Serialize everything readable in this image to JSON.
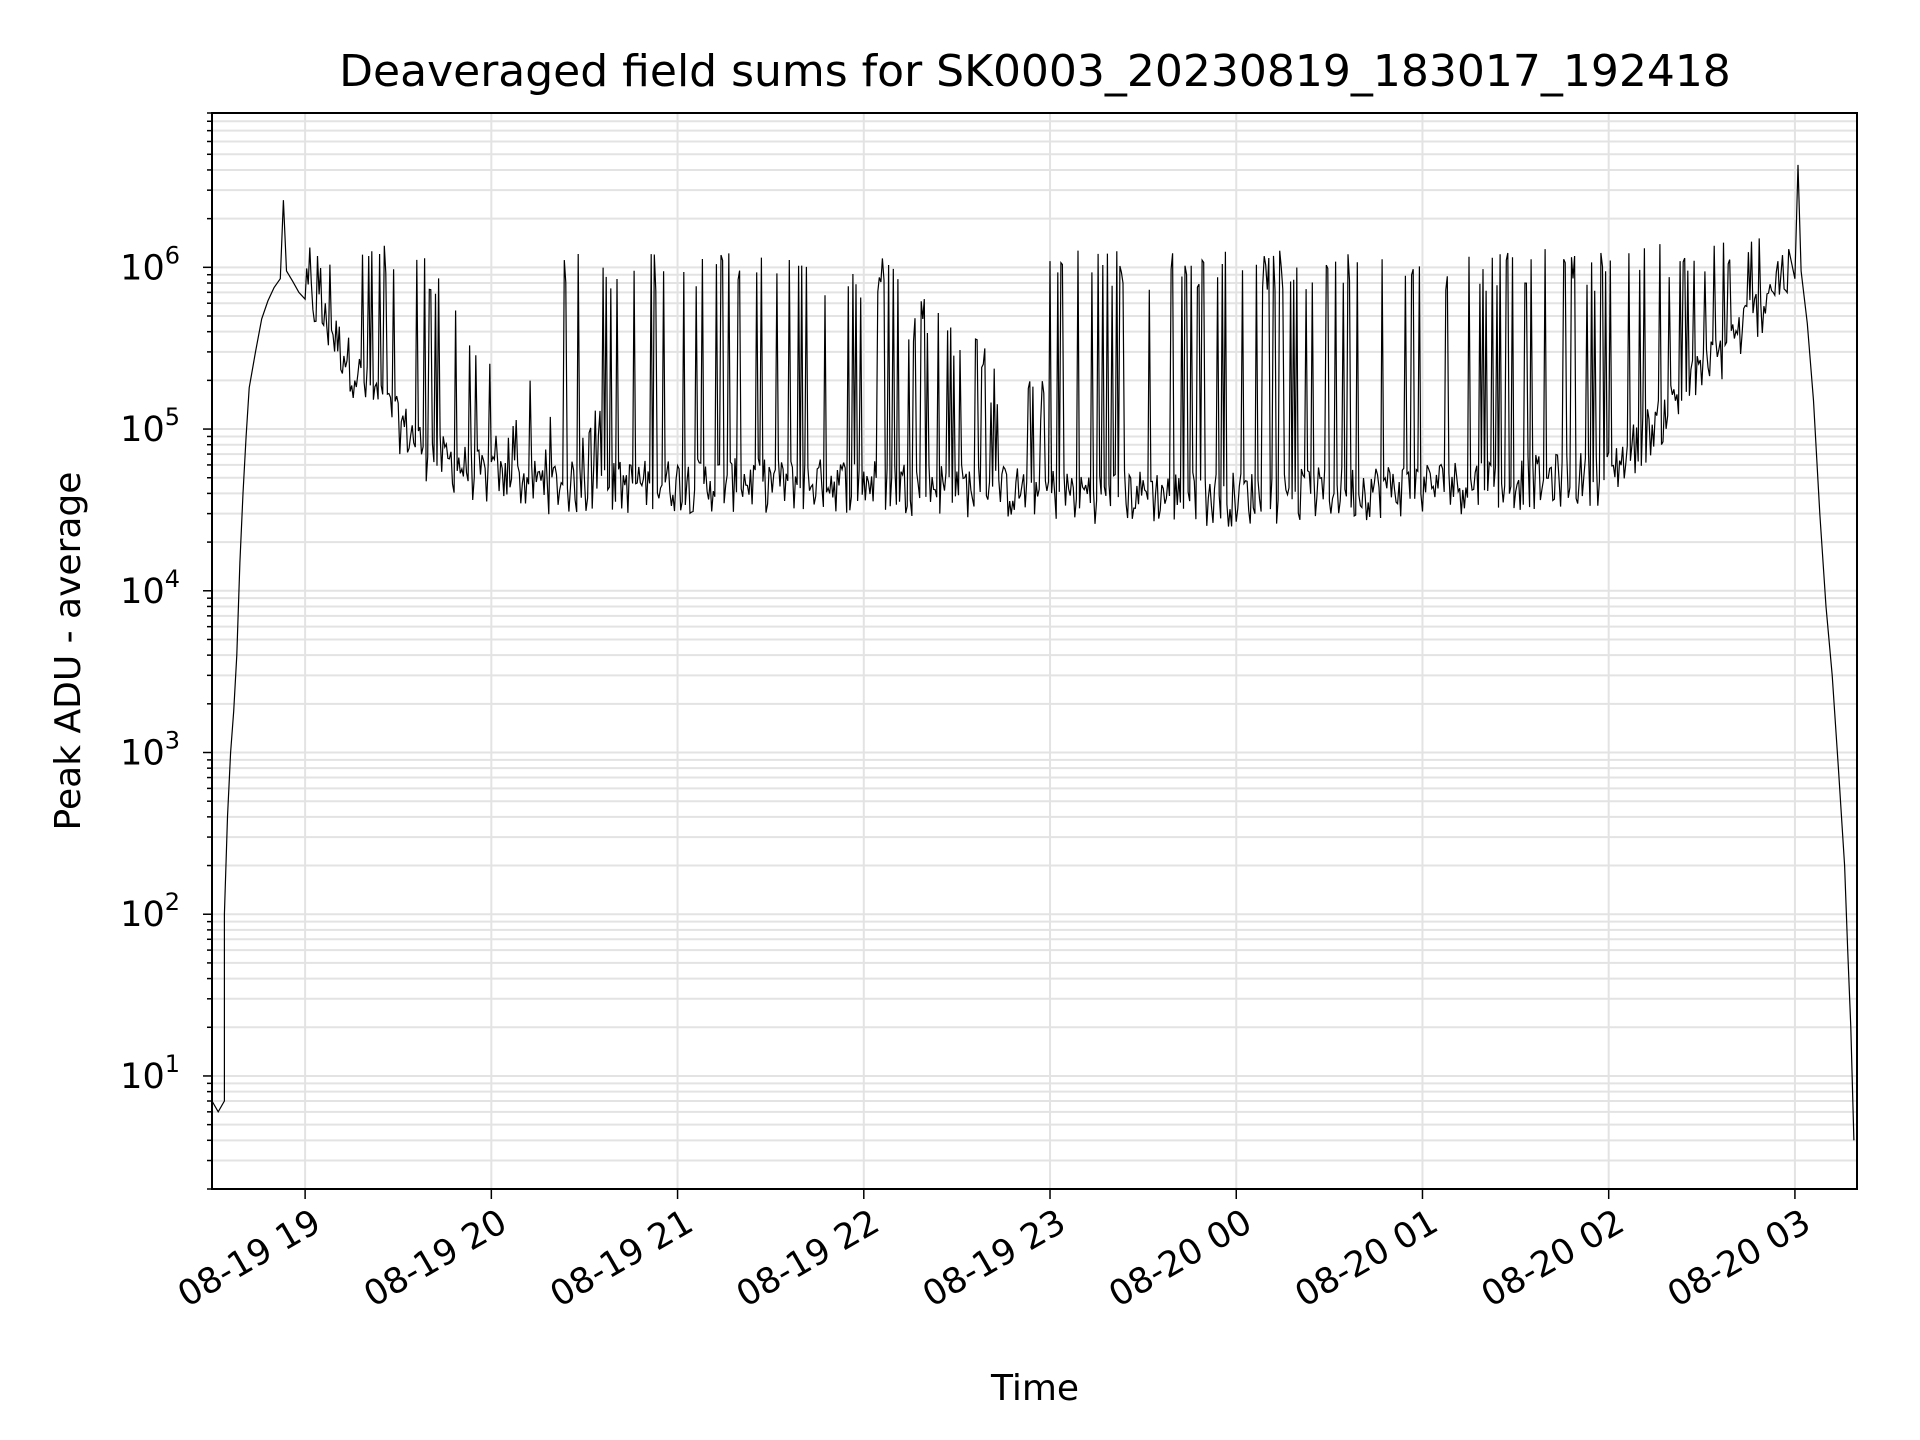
{
  "chart_data": {
    "type": "line",
    "title": "Deaveraged field sums for SK0003_20230819_183017_192418",
    "xlabel": "Time",
    "ylabel": "Peak ADU - average",
    "yscale": "log",
    "xlim": [
      "2023-08-19 18:30",
      "2023-08-20 03:20"
    ],
    "ylim": [
      2,
      9000000
    ],
    "grid": true,
    "line_color": "#000000",
    "grid_color": "#e3e3e3",
    "x_ticks": [
      {
        "time": "2023-08-19 19:00",
        "label": "08-19 19"
      },
      {
        "time": "2023-08-19 20:00",
        "label": "08-19 20"
      },
      {
        "time": "2023-08-19 21:00",
        "label": "08-19 21"
      },
      {
        "time": "2023-08-19 22:00",
        "label": "08-19 22"
      },
      {
        "time": "2023-08-19 23:00",
        "label": "08-19 23"
      },
      {
        "time": "2023-08-20 00:00",
        "label": "08-20 00"
      },
      {
        "time": "2023-08-20 01:00",
        "label": "08-20 01"
      },
      {
        "time": "2023-08-20 02:00",
        "label": "08-20 02"
      },
      {
        "time": "2023-08-20 03:00",
        "label": "08-20 03"
      }
    ],
    "y_ticks": [
      {
        "value": 10,
        "base": "10",
        "exp": "1"
      },
      {
        "value": 100,
        "base": "10",
        "exp": "2"
      },
      {
        "value": 1000,
        "base": "10",
        "exp": "3"
      },
      {
        "value": 10000,
        "base": "10",
        "exp": "4"
      },
      {
        "value": 100000,
        "base": "10",
        "exp": "5"
      },
      {
        "value": 1000000,
        "base": "10",
        "exp": "6"
      }
    ],
    "series": [
      {
        "points": [
          [
            "2023-08-19 18:30",
            7
          ],
          [
            "2023-08-19 18:32",
            6
          ],
          [
            "2023-08-19 18:34",
            7
          ],
          [
            "2023-08-19 18:34",
            100
          ],
          [
            "2023-08-19 18:35",
            400
          ],
          [
            "2023-08-19 18:36",
            1000
          ],
          [
            "2023-08-19 18:37",
            1800
          ],
          [
            "2023-08-19 18:38",
            4000
          ],
          [
            "2023-08-19 18:39",
            15000
          ],
          [
            "2023-08-19 18:40",
            40000
          ],
          [
            "2023-08-19 18:41",
            90000
          ],
          [
            "2023-08-19 18:42",
            180000
          ],
          [
            "2023-08-19 18:44",
            300000
          ],
          [
            "2023-08-19 18:46",
            480000
          ],
          [
            "2023-08-19 18:48",
            620000
          ],
          [
            "2023-08-19 18:50",
            750000
          ],
          [
            "2023-08-19 18:52",
            850000
          ],
          [
            "2023-08-19 18:53",
            2600000
          ],
          [
            "2023-08-19 18:54",
            950000
          ],
          [
            "2023-08-19 18:56",
            820000
          ],
          [
            "2023-08-19 18:58",
            700000
          ],
          [
            "2023-08-19 19:00",
            620000
          ],
          [
            "2023-08-19 19:20",
            150000
          ],
          [
            "2023-08-19 19:40",
            60000
          ],
          [
            "2023-08-19 20:00",
            42000
          ],
          [
            "2023-08-19 20:30",
            38000
          ],
          [
            "2023-08-19 21:00",
            40000
          ],
          [
            "2023-08-19 22:00",
            40000
          ],
          [
            "2023-08-19 23:00",
            35000
          ],
          [
            "2023-08-20 00:00",
            33000
          ],
          [
            "2023-08-20 01:00",
            38000
          ],
          [
            "2023-08-20 02:00",
            45000
          ],
          [
            "2023-08-20 02:20",
            120000
          ],
          [
            "2023-08-20 02:40",
            300000
          ],
          [
            "2023-08-20 02:55",
            700000
          ],
          [
            "2023-08-20 03:00",
            850000
          ],
          [
            "2023-08-20 03:01",
            4300000
          ],
          [
            "2023-08-20 03:02",
            950000
          ],
          [
            "2023-08-20 03:04",
            450000
          ],
          [
            "2023-08-20 03:06",
            150000
          ],
          [
            "2023-08-20 03:08",
            30000
          ],
          [
            "2023-08-20 03:10",
            8000
          ],
          [
            "2023-08-20 03:12",
            3000
          ],
          [
            "2023-08-20 03:14",
            800
          ],
          [
            "2023-08-20 03:16",
            200
          ],
          [
            "2023-08-20 03:17",
            60
          ],
          [
            "2023-08-20 03:18",
            20
          ],
          [
            "2023-08-20 03:19",
            4
          ]
        ],
        "peaks": [
          [
            "2023-08-19 19:02",
            1400000
          ],
          [
            "2023-08-19 19:05",
            1300000
          ],
          [
            "2023-08-19 19:09",
            1500000
          ],
          [
            "2023-08-19 19:12",
            1800000
          ],
          [
            "2023-08-19 19:15",
            1400000
          ],
          [
            "2023-08-19 19:19",
            1500000
          ],
          [
            "2023-08-19 19:22",
            1500000
          ],
          [
            "2023-08-19 19:26",
            1400000
          ],
          [
            "2023-08-19 19:30",
            1400000
          ],
          [
            "2023-08-19 19:34",
            1400000
          ],
          [
            "2023-08-19 19:39",
            1200000
          ],
          [
            "2023-08-19 19:44",
            900000
          ],
          [
            "2023-08-19 19:48",
            700000
          ],
          [
            "2023-08-19 19:52",
            450000
          ],
          [
            "2023-08-19 19:56",
            300000
          ],
          [
            "2023-08-19 20:04",
            150000
          ],
          [
            "2023-08-19 20:10",
            200000
          ],
          [
            "2023-08-19 20:18",
            120000
          ],
          [
            "2023-08-19 20:26",
            1300000
          ],
          [
            "2023-08-19 20:32",
            150000
          ],
          [
            "2023-08-19 20:38",
            1300000
          ],
          [
            "2023-08-19 20:44",
            1200000
          ],
          [
            "2023-08-19 20:52",
            1300000
          ],
          [
            "2023-08-19 20:56",
            1300000
          ],
          [
            "2023-08-19 21:02",
            1300000
          ],
          [
            "2023-08-19 21:08",
            1250000
          ],
          [
            "2023-08-19 21:14",
            1300000
          ],
          [
            "2023-08-19 21:20",
            1350000
          ],
          [
            "2023-08-19 21:26",
            1350000
          ],
          [
            "2023-08-19 21:32",
            1300000
          ],
          [
            "2023-08-19 21:38",
            1300000
          ],
          [
            "2023-08-19 21:44",
            1200000
          ],
          [
            "2023-08-19 21:50",
            1100000
          ],
          [
            "2023-08-19 21:56",
            1000000
          ],
          [
            "2023-08-19 22:02",
            900000
          ],
          [
            "2023-08-19 22:08",
            1200000
          ],
          [
            "2023-08-19 22:14",
            600000
          ],
          [
            "2023-08-19 22:20",
            700000
          ],
          [
            "2023-08-19 22:28",
            500000
          ],
          [
            "2023-08-19 22:36",
            400000
          ],
          [
            "2023-08-19 22:44",
            250000
          ],
          [
            "2023-08-19 22:52",
            200000
          ],
          [
            "2023-08-19 23:06",
            1300000
          ],
          [
            "2023-08-19 23:20",
            1300000
          ],
          [
            "2023-08-19 23:32",
            1200000
          ],
          [
            "2023-08-19 23:44",
            1300000
          ],
          [
            "2023-08-19 23:56",
            1300000
          ],
          [
            "2023-08-20 00:10",
            1300000
          ],
          [
            "2023-08-20 00:22",
            1300000
          ],
          [
            "2023-08-20 00:32",
            1300000
          ],
          [
            "2023-08-20 00:44",
            1300000
          ],
          [
            "2023-08-20 00:56",
            1300000
          ],
          [
            "2023-08-20 01:08",
            1300000
          ],
          [
            "2023-08-20 01:20",
            1300000
          ],
          [
            "2023-08-20 01:32",
            1300000
          ],
          [
            "2023-08-20 01:44",
            1300000
          ],
          [
            "2023-08-20 01:56",
            1300000
          ],
          [
            "2023-08-20 02:08",
            1400000
          ],
          [
            "2023-08-20 02:20",
            1400000
          ],
          [
            "2023-08-20 02:32",
            1600000
          ],
          [
            "2023-08-20 02:44",
            1600000
          ],
          [
            "2023-08-20 02:54",
            1300000
          ]
        ]
      }
    ]
  }
}
